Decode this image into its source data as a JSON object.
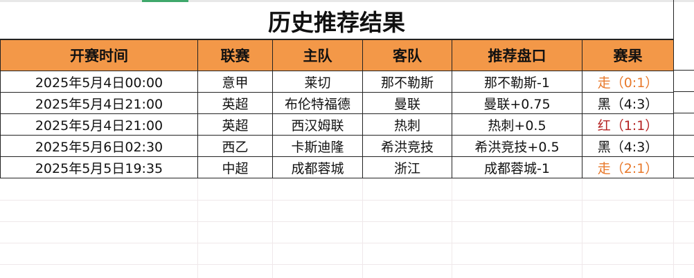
{
  "title": "历史推荐结果",
  "headers": [
    "开赛时间",
    "联赛",
    "主队",
    "客队",
    "推荐盘口",
    "赛果"
  ],
  "rows": [
    {
      "time": "2025年5月4日00:00",
      "league": "意甲",
      "home": "莱切",
      "away": "那不勒斯",
      "pick": "那不勒斯-1",
      "result": "走（0:1）",
      "result_type": "walk"
    },
    {
      "time": "2025年5月4日21:00",
      "league": "英超",
      "home": "布伦特福德",
      "away": "曼联",
      "pick": "曼联+0.75",
      "result": "黑（4:3）",
      "result_type": "black"
    },
    {
      "time": "2025年5月4日21:00",
      "league": "英超",
      "home": "西汉姆联",
      "away": "热刺",
      "pick": "热刺+0.5",
      "result": "红（1:1）",
      "result_type": "red"
    },
    {
      "time": "2025年5月6日02:30",
      "league": "西乙",
      "home": "卡斯迪隆",
      "away": "希洪竞技",
      "pick": "希洪竞技+0.5",
      "result": "黑（4:3）",
      "result_type": "black"
    },
    {
      "time": "2025年5月5日19:35",
      "league": "中超",
      "home": "成都蓉城",
      "away": "浙江",
      "pick": "成都蓉城-1",
      "result": "走（2:1）",
      "result_type": "walk"
    }
  ],
  "colors": {
    "header_bg": "#f39848",
    "walk": "#e8782a",
    "red": "#b42222",
    "black": "#111111"
  }
}
